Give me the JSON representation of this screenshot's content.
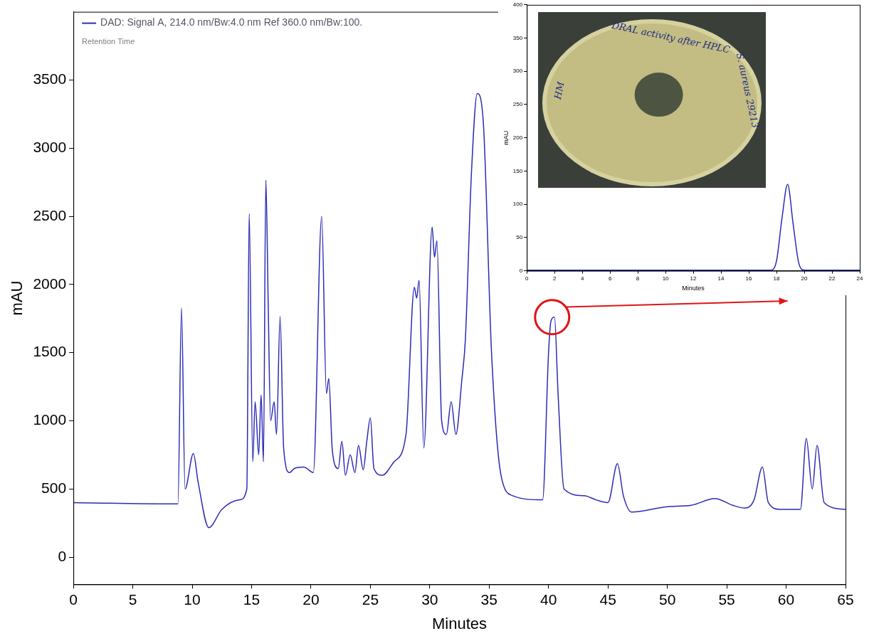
{
  "chart_data": [
    {
      "type": "line",
      "legend": "top-left",
      "subtitle": "Retention Time",
      "x_label": "Minutes",
      "y_label": "mAU",
      "xlim": [
        0,
        65
      ],
      "xticks": [
        0,
        5,
        10,
        15,
        20,
        25,
        30,
        35,
        40,
        45,
        50,
        55,
        60,
        65
      ],
      "ylim": [
        -200,
        4000
      ],
      "yticks": [
        0,
        500,
        1000,
        1500,
        2000,
        2500,
        3000,
        3500
      ],
      "grid": false,
      "x": [
        0,
        8.8,
        9.1,
        9.4,
        10.1,
        10.5,
        11.4,
        12.5,
        14,
        14.6,
        14.8,
        15.1,
        15.3,
        15.6,
        15.8,
        16.0,
        16.2,
        16.4,
        16.6,
        16.9,
        17.1,
        17.4,
        17.7,
        18.2,
        18.6,
        19.4,
        20.2,
        20.9,
        21.3,
        21.5,
        21.8,
        22.3,
        22.6,
        22.9,
        23.3,
        23.7,
        24.0,
        24.4,
        24.7,
        25.0,
        25.3,
        26,
        27,
        28,
        28.7,
        28.9,
        29.1,
        29.5,
        30.2,
        30.4,
        30.6,
        31,
        31.4,
        31.8,
        32.2,
        32.7,
        33.0,
        33.5,
        34.0,
        34.5,
        35.2,
        36,
        37,
        39.5,
        40.0,
        40.2,
        40.5,
        40.8,
        41.3,
        43,
        44,
        45,
        45.8,
        46.3,
        47,
        50,
        52,
        54,
        55.5,
        56.5,
        57.3,
        58.0,
        58.5,
        59.5,
        61.2,
        61.7,
        62.2,
        62.6,
        63.2,
        65
      ],
      "series": [
        {
          "name": "DAD: Signal A, 214.0 nm/Bw:4.0 nm Ref 360.0 nm/Bw:100.",
          "color": "#2b2bb5",
          "values": [
            400,
            390,
            1830,
            500,
            760,
            550,
            216,
            350,
            420,
            500,
            2520,
            700,
            1140,
            750,
            1190,
            700,
            2765,
            1855,
            1000,
            1140,
            900,
            1765,
            800,
            620,
            650,
            660,
            620,
            2500,
            1200,
            1310,
            780,
            650,
            850,
            600,
            750,
            620,
            820,
            640,
            850,
            1020,
            650,
            600,
            700,
            900,
            1980,
            1900,
            2030,
            800,
            2420,
            2200,
            2320,
            1000,
            900,
            1140,
            900,
            1300,
            1600,
            2800,
            3400,
            3200,
            1500,
            600,
            450,
            420,
            1500,
            1730,
            1760,
            1200,
            500,
            450,
            420,
            400,
            685,
            450,
            330,
            370,
            380,
            430,
            380,
            360,
            420,
            660,
            400,
            350,
            350,
            870,
            500,
            820,
            400,
            350
          ]
        }
      ],
      "marked_peak": {
        "x": 40.3,
        "y": 1760
      }
    },
    {
      "type": "line",
      "x_label": "Minutes",
      "y_label": "mAU",
      "xlim": [
        0,
        24
      ],
      "xticks": [
        0,
        2,
        4,
        6,
        8,
        10,
        12,
        14,
        16,
        18,
        20,
        22,
        24
      ],
      "ylim": [
        0,
        400
      ],
      "yticks": [
        0,
        50,
        100,
        150,
        200,
        250,
        300,
        350,
        400
      ],
      "grid": false,
      "x": [
        0,
        17.6,
        18.0,
        18.4,
        18.8,
        19.2,
        19.6,
        20,
        24
      ],
      "series": [
        {
          "color": "#2b2bb5",
          "values": [
            1,
            1,
            15,
            80,
            130,
            70,
            12,
            1,
            1
          ]
        }
      ]
    }
  ],
  "photo_labels": [
    "DRAL activity after HPLC",
    "S. aureus 29213",
    "HM"
  ]
}
